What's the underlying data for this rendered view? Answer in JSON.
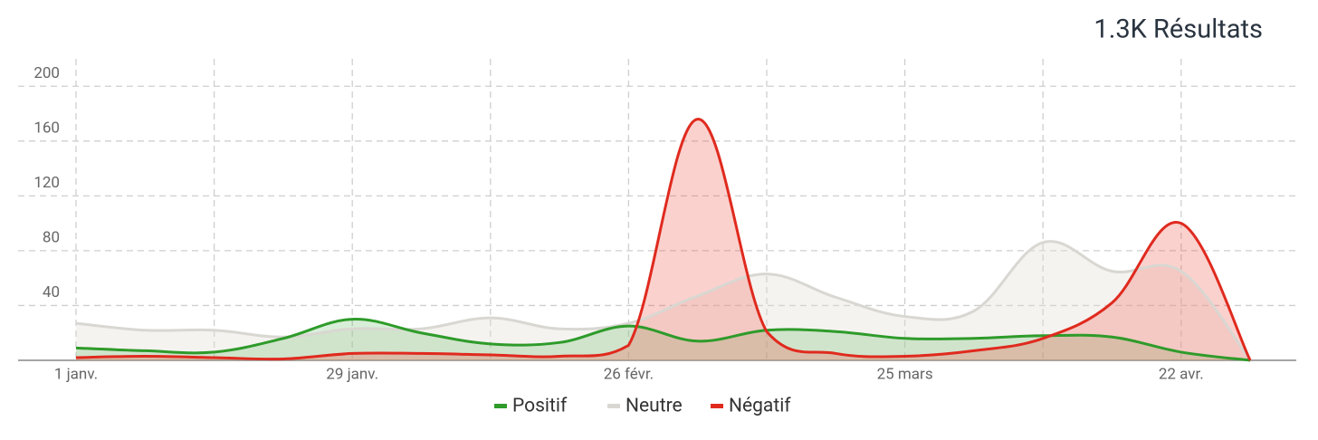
{
  "chart_data": {
    "type": "area",
    "title": "1.3K Résultats",
    "categories": [
      "1 janv.",
      null,
      null,
      null,
      "29 janv.",
      null,
      null,
      null,
      "26 févr.",
      null,
      null,
      null,
      "25 mars",
      null,
      null,
      null,
      "22 avr.",
      null
    ],
    "series": [
      {
        "name": "Positif",
        "color": "#2e9b2a",
        "fill": "rgba(60,170,60,0.2)",
        "values": [
          9,
          7,
          6,
          16,
          30,
          20,
          12,
          13,
          25,
          14,
          22,
          21,
          16,
          16,
          18,
          17,
          6,
          0
        ]
      },
      {
        "name": "Neutre",
        "color": "#d9d7d2",
        "fill": "rgba(225,222,212,0.35)",
        "values": [
          27,
          22,
          22,
          17,
          23,
          23,
          31,
          23,
          27,
          47,
          63,
          46,
          32,
          36,
          86,
          65,
          65,
          0
        ]
      },
      {
        "name": "Négatif",
        "color": "#e02a1e",
        "fill": "rgba(240,90,80,0.28)",
        "values": [
          2,
          3,
          2,
          1,
          5,
          5,
          4,
          3,
          11,
          176,
          21,
          5,
          3,
          7,
          16,
          42,
          100,
          0
        ]
      }
    ],
    "ylim": [
      0,
      220
    ],
    "yticks": [
      40,
      80,
      120,
      160,
      200
    ],
    "grid": true
  }
}
